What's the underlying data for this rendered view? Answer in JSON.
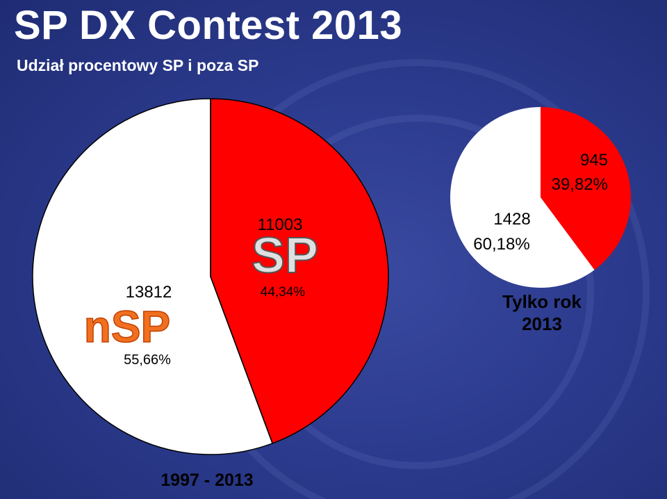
{
  "title": "SP DX Contest 2013",
  "subtitle": "Udział procentowy SP i poza SP",
  "colors": {
    "background": "#2c3b8e",
    "sp": "#ff0000",
    "nsp": "#ffffff",
    "logo_fill": "#e8e8e8",
    "logo_nsp": "#f07020"
  },
  "chart_data": [
    {
      "type": "pie",
      "caption": "1997 - 2013",
      "slices": [
        {
          "logo": "SP",
          "value": 11003,
          "percent_label": "44,34%",
          "color": "#ff0000"
        },
        {
          "logo": "nSP",
          "value": 13812,
          "percent_label": "55,66%",
          "color": "#ffffff"
        }
      ]
    },
    {
      "type": "pie",
      "caption_line1": "Tylko rok",
      "caption_line2": "2013",
      "slices": [
        {
          "value": 945,
          "percent_label": "39,82%",
          "color": "#ff0000"
        },
        {
          "value": 1428,
          "percent_label": "60,18%",
          "color": "#ffffff"
        }
      ]
    }
  ]
}
